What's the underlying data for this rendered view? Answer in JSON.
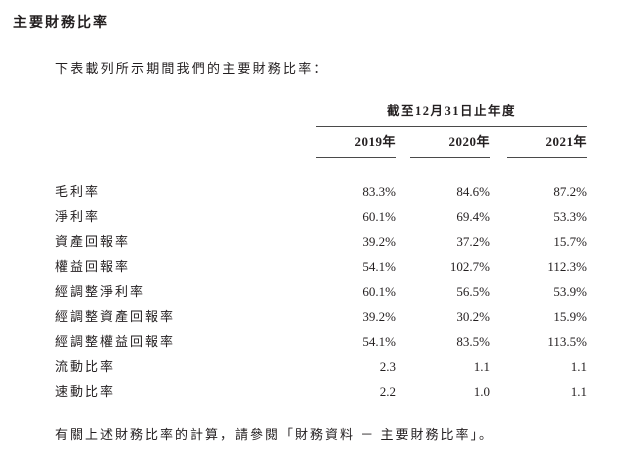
{
  "page": {
    "title": "主要財務比率",
    "intro": "下表載列所示期間我們的主要財務比率：",
    "footer": "有關上述財務比率的計算，請參閱「財務資料 － 主要財務比率」。"
  },
  "table": {
    "span_header": "截至12月31日止年度",
    "columns": [
      "2019年",
      "2020年",
      "2021年"
    ],
    "rows": [
      {
        "label": "毛利率",
        "values": [
          "83.3%",
          "84.6%",
          "87.2%"
        ]
      },
      {
        "label": "淨利率",
        "values": [
          "60.1%",
          "69.4%",
          "53.3%"
        ]
      },
      {
        "label": "資產回報率",
        "values": [
          "39.2%",
          "37.2%",
          "15.7%"
        ]
      },
      {
        "label": "權益回報率",
        "values": [
          "54.1%",
          "102.7%",
          "112.3%"
        ]
      },
      {
        "label": "經調整淨利率",
        "values": [
          "60.1%",
          "56.5%",
          "53.9%"
        ]
      },
      {
        "label": "經調整資產回報率",
        "values": [
          "39.2%",
          "30.2%",
          "15.9%"
        ]
      },
      {
        "label": "經調整權益回報率",
        "values": [
          "54.1%",
          "83.5%",
          "113.5%"
        ]
      },
      {
        "label": "流動比率",
        "values": [
          "2.3",
          "1.1",
          "1.1"
        ]
      },
      {
        "label": "速動比率",
        "values": [
          "2.2",
          "1.0",
          "1.1"
        ]
      }
    ]
  },
  "colors": {
    "text": "#231f20",
    "rule": "#4a4a4a",
    "background": "#ffffff"
  }
}
